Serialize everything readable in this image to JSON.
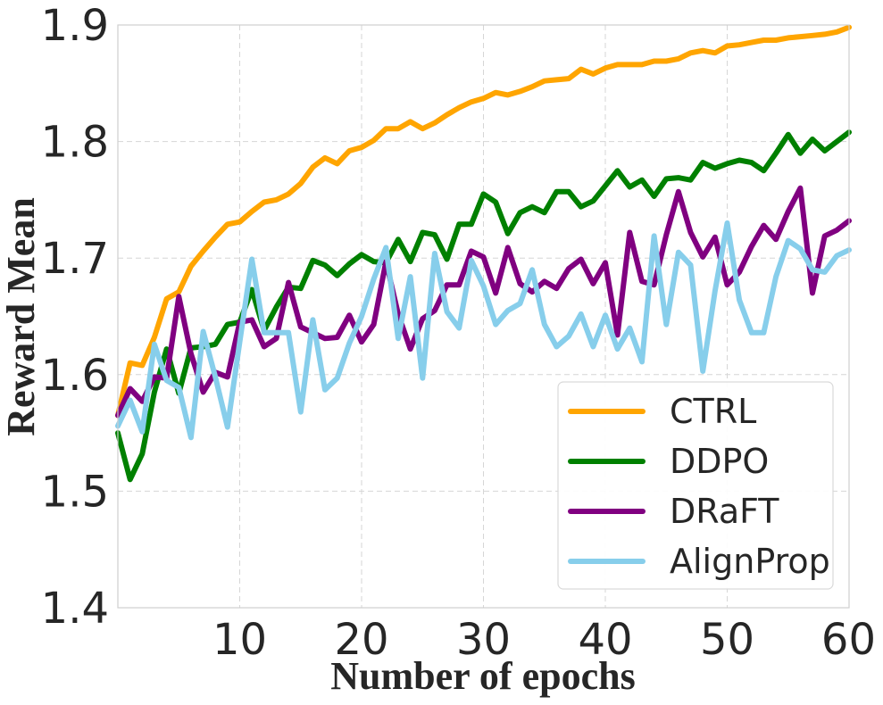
{
  "chart_data": {
    "type": "line",
    "title": "",
    "xlabel": "Number of epochs",
    "ylabel": "Reward Mean",
    "xlim": [
      0,
      60
    ],
    "ylim": [
      1.4,
      1.9
    ],
    "xticks": [
      10,
      20,
      30,
      40,
      50,
      60
    ],
    "xtick_labels": [
      "10",
      "20",
      "30",
      "40",
      "50",
      "60"
    ],
    "yticks": [
      1.4,
      1.5,
      1.6,
      1.7,
      1.8,
      1.9
    ],
    "ytick_labels": [
      "1.4",
      "1.5",
      "1.6",
      "1.7",
      "1.8",
      "1.9"
    ],
    "grid": true,
    "legend_position": "lower-right",
    "x": [
      0,
      1,
      2,
      3,
      4,
      5,
      6,
      7,
      8,
      9,
      10,
      11,
      12,
      13,
      14,
      15,
      16,
      17,
      18,
      19,
      20,
      21,
      22,
      23,
      24,
      25,
      26,
      27,
      28,
      29,
      30,
      31,
      32,
      33,
      34,
      35,
      36,
      37,
      38,
      39,
      40,
      41,
      42,
      43,
      44,
      45,
      46,
      47,
      48,
      49,
      50,
      51,
      52,
      53,
      54,
      55,
      56,
      57,
      58,
      59,
      60
    ],
    "series": [
      {
        "name": "CTRL",
        "color": "#FFA500",
        "values": [
          1.565,
          1.61,
          1.608,
          1.632,
          1.665,
          1.671,
          1.693,
          1.706,
          1.718,
          1.729,
          1.731,
          1.74,
          1.748,
          1.75,
          1.755,
          1.764,
          1.778,
          1.786,
          1.781,
          1.792,
          1.795,
          1.801,
          1.811,
          1.811,
          1.817,
          1.811,
          1.816,
          1.823,
          1.829,
          1.834,
          1.837,
          1.842,
          1.84,
          1.843,
          1.847,
          1.852,
          1.853,
          1.854,
          1.862,
          1.858,
          1.863,
          1.866,
          1.866,
          1.866,
          1.869,
          1.869,
          1.871,
          1.876,
          1.878,
          1.876,
          1.882,
          1.883,
          1.885,
          1.887,
          1.887,
          1.889,
          1.89,
          1.891,
          1.892,
          1.894,
          1.898
        ]
      },
      {
        "name": "DDPO",
        "color": "#008000",
        "values": [
          1.55,
          1.51,
          1.532,
          1.585,
          1.622,
          1.584,
          1.623,
          1.624,
          1.626,
          1.643,
          1.645,
          1.673,
          1.638,
          1.658,
          1.675,
          1.674,
          1.698,
          1.694,
          1.685,
          1.695,
          1.703,
          1.697,
          1.696,
          1.716,
          1.697,
          1.722,
          1.72,
          1.699,
          1.729,
          1.729,
          1.755,
          1.748,
          1.721,
          1.739,
          1.744,
          1.739,
          1.757,
          1.757,
          1.744,
          1.749,
          1.762,
          1.775,
          1.761,
          1.767,
          1.753,
          1.768,
          1.769,
          1.767,
          1.782,
          1.777,
          1.781,
          1.784,
          1.782,
          1.775,
          1.79,
          1.806,
          1.79,
          1.802,
          1.792,
          1.8,
          1.808
        ]
      },
      {
        "name": "DRaFT",
        "color": "#800080",
        "values": [
          1.565,
          1.588,
          1.577,
          1.598,
          1.597,
          1.667,
          1.618,
          1.585,
          1.602,
          1.598,
          1.645,
          1.647,
          1.624,
          1.631,
          1.679,
          1.641,
          1.636,
          1.631,
          1.632,
          1.651,
          1.628,
          1.643,
          1.697,
          1.652,
          1.622,
          1.648,
          1.655,
          1.677,
          1.677,
          1.706,
          1.701,
          1.67,
          1.709,
          1.678,
          1.671,
          1.68,
          1.674,
          1.691,
          1.699,
          1.678,
          1.696,
          1.634,
          1.722,
          1.68,
          1.677,
          1.72,
          1.757,
          1.722,
          1.701,
          1.718,
          1.677,
          1.688,
          1.71,
          1.728,
          1.716,
          1.74,
          1.76,
          1.67,
          1.719,
          1.724,
          1.732
        ]
      },
      {
        "name": "AlignProp",
        "color": "#87CEEB",
        "values": [
          1.556,
          1.578,
          1.551,
          1.626,
          1.595,
          1.589,
          1.546,
          1.637,
          1.598,
          1.555,
          1.628,
          1.699,
          1.636,
          1.636,
          1.636,
          1.568,
          1.647,
          1.587,
          1.597,
          1.627,
          1.65,
          1.682,
          1.709,
          1.631,
          1.684,
          1.597,
          1.704,
          1.654,
          1.64,
          1.698,
          1.676,
          1.643,
          1.655,
          1.661,
          1.69,
          1.643,
          1.624,
          1.633,
          1.652,
          1.624,
          1.651,
          1.622,
          1.64,
          1.611,
          1.719,
          1.643,
          1.705,
          1.694,
          1.603,
          1.672,
          1.73,
          1.664,
          1.636,
          1.636,
          1.684,
          1.715,
          1.708,
          1.69,
          1.688,
          1.702,
          1.707
        ]
      }
    ]
  }
}
